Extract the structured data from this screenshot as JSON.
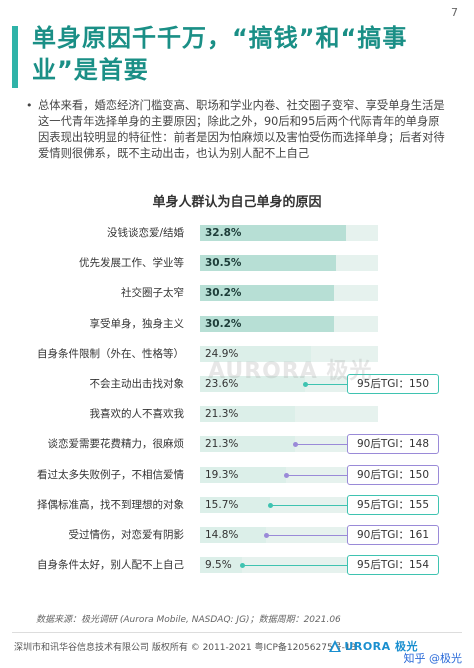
{
  "page_number": "7",
  "title": "单身原因千千万，“搞钱”和“搞事业”是首要",
  "summary": "总体来看，婚恋经济门槛变高、职场和学业内卷、社交圈子变窄、享受单身生活是这一代青年选择单身的主要原因；除此之外，90后和95后两个代际青年的单身原因表现出较明显的特征性：前者是因为怕麻烦以及害怕受伤而选择单身；后者对待爱情则很佛系，既不主动出击，也认为别人配不上自己",
  "chart_title": "单身人群认为自己单身的原因",
  "watermark": "AURORA 极光",
  "colors": {
    "accent": "#2fb3a8",
    "bar_dark": "#b7dfd5",
    "bar_light": "#dcefe9",
    "bar_bg": "#e6f2ee",
    "tgi_teal": "#3fc3b1",
    "tgi_purple": "#9a8ad8"
  },
  "chart_data": {
    "type": "bar",
    "categories": [
      "没钱谈恋爱/结婚",
      "优先发展工作、学业等",
      "社交圈子太窄",
      "享受单身，独身主义",
      "自身条件限制（外在、性格等）",
      "不会主动出击找对象",
      "我喜欢的人不喜欢我",
      "谈恋爱需要花费精力，很麻烦",
      "看过太多失败例子，不相信爱情",
      "择偶标准高，找不到理想的对象",
      "受过情伤，对恋爱有阴影",
      "自身条件太好，别人配不上自己"
    ],
    "values": [
      32.8,
      30.5,
      30.2,
      30.2,
      24.9,
      23.6,
      21.3,
      21.3,
      19.3,
      15.7,
      14.8,
      9.5
    ],
    "value_labels": [
      "32.8%",
      "30.5%",
      "30.2%",
      "30.2%",
      "24.9%",
      "23.6%",
      "21.3%",
      "21.3%",
      "19.3%",
      "15.7%",
      "14.8%",
      "9.5%"
    ],
    "highlighted": [
      true,
      true,
      true,
      true,
      false,
      false,
      false,
      false,
      false,
      false,
      false,
      false
    ],
    "xlim": [
      0,
      40
    ],
    "tgi_callouts": [
      {
        "row": 5,
        "label": "95后TGI：150",
        "color": "teal"
      },
      {
        "row": 7,
        "label": "90后TGI：148",
        "color": "purple"
      },
      {
        "row": 8,
        "label": "90后TGI：150",
        "color": "purple"
      },
      {
        "row": 9,
        "label": "95后TGI：155",
        "color": "teal"
      },
      {
        "row": 10,
        "label": "90后TGI：161",
        "color": "purple"
      },
      {
        "row": 11,
        "label": "95后TGI：154",
        "color": "teal"
      }
    ]
  },
  "source": "数据来源：极光调研 (Aurora Mobile, NASDAQ: JG)；数据周期：2021.06",
  "footer": {
    "copyright": "深圳市和讯华谷信息技术有限公司 版权所有 © 2011-2021 粤ICP备12056275号-13",
    "logo_text": "URORA 极光",
    "zhihu": "知乎 @极光"
  }
}
